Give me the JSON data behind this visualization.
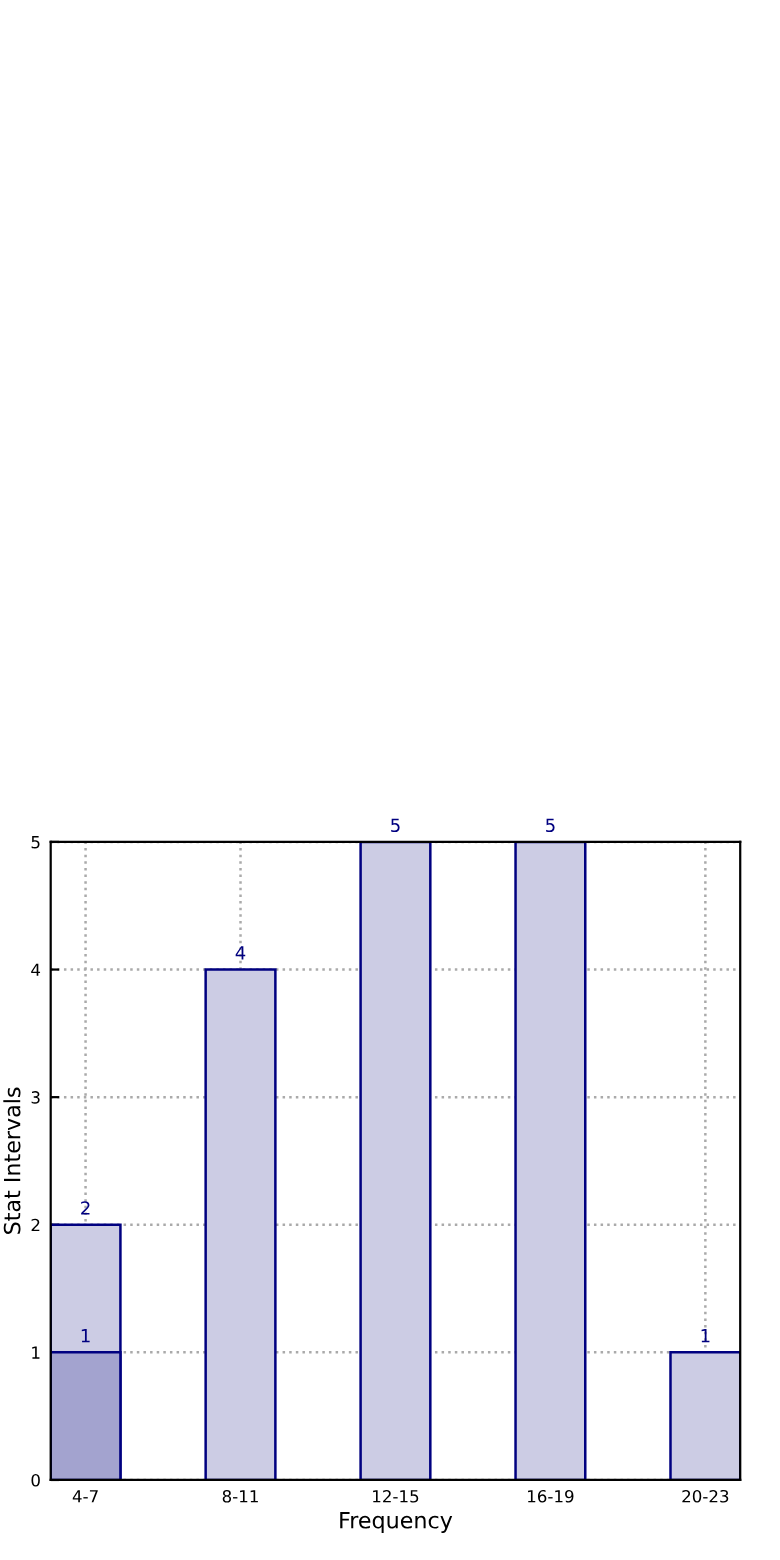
{
  "chart_data": {
    "type": "bar",
    "xlabel": "Frequency",
    "ylabel": "Stat Intervals",
    "categories": [
      "4-7",
      "8-11",
      "12-15",
      "16-19",
      "20-23"
    ],
    "series": [
      {
        "color": "#cccce4",
        "values": [
          2,
          4,
          5,
          5,
          1
        ]
      },
      {
        "color": "#a3a3cf",
        "values": [
          1,
          null,
          null,
          null,
          null
        ]
      }
    ],
    "ylim": [
      0,
      5
    ],
    "yticks": [
      0,
      1,
      2,
      3,
      4,
      5
    ],
    "grid": true,
    "data_labels": true
  }
}
